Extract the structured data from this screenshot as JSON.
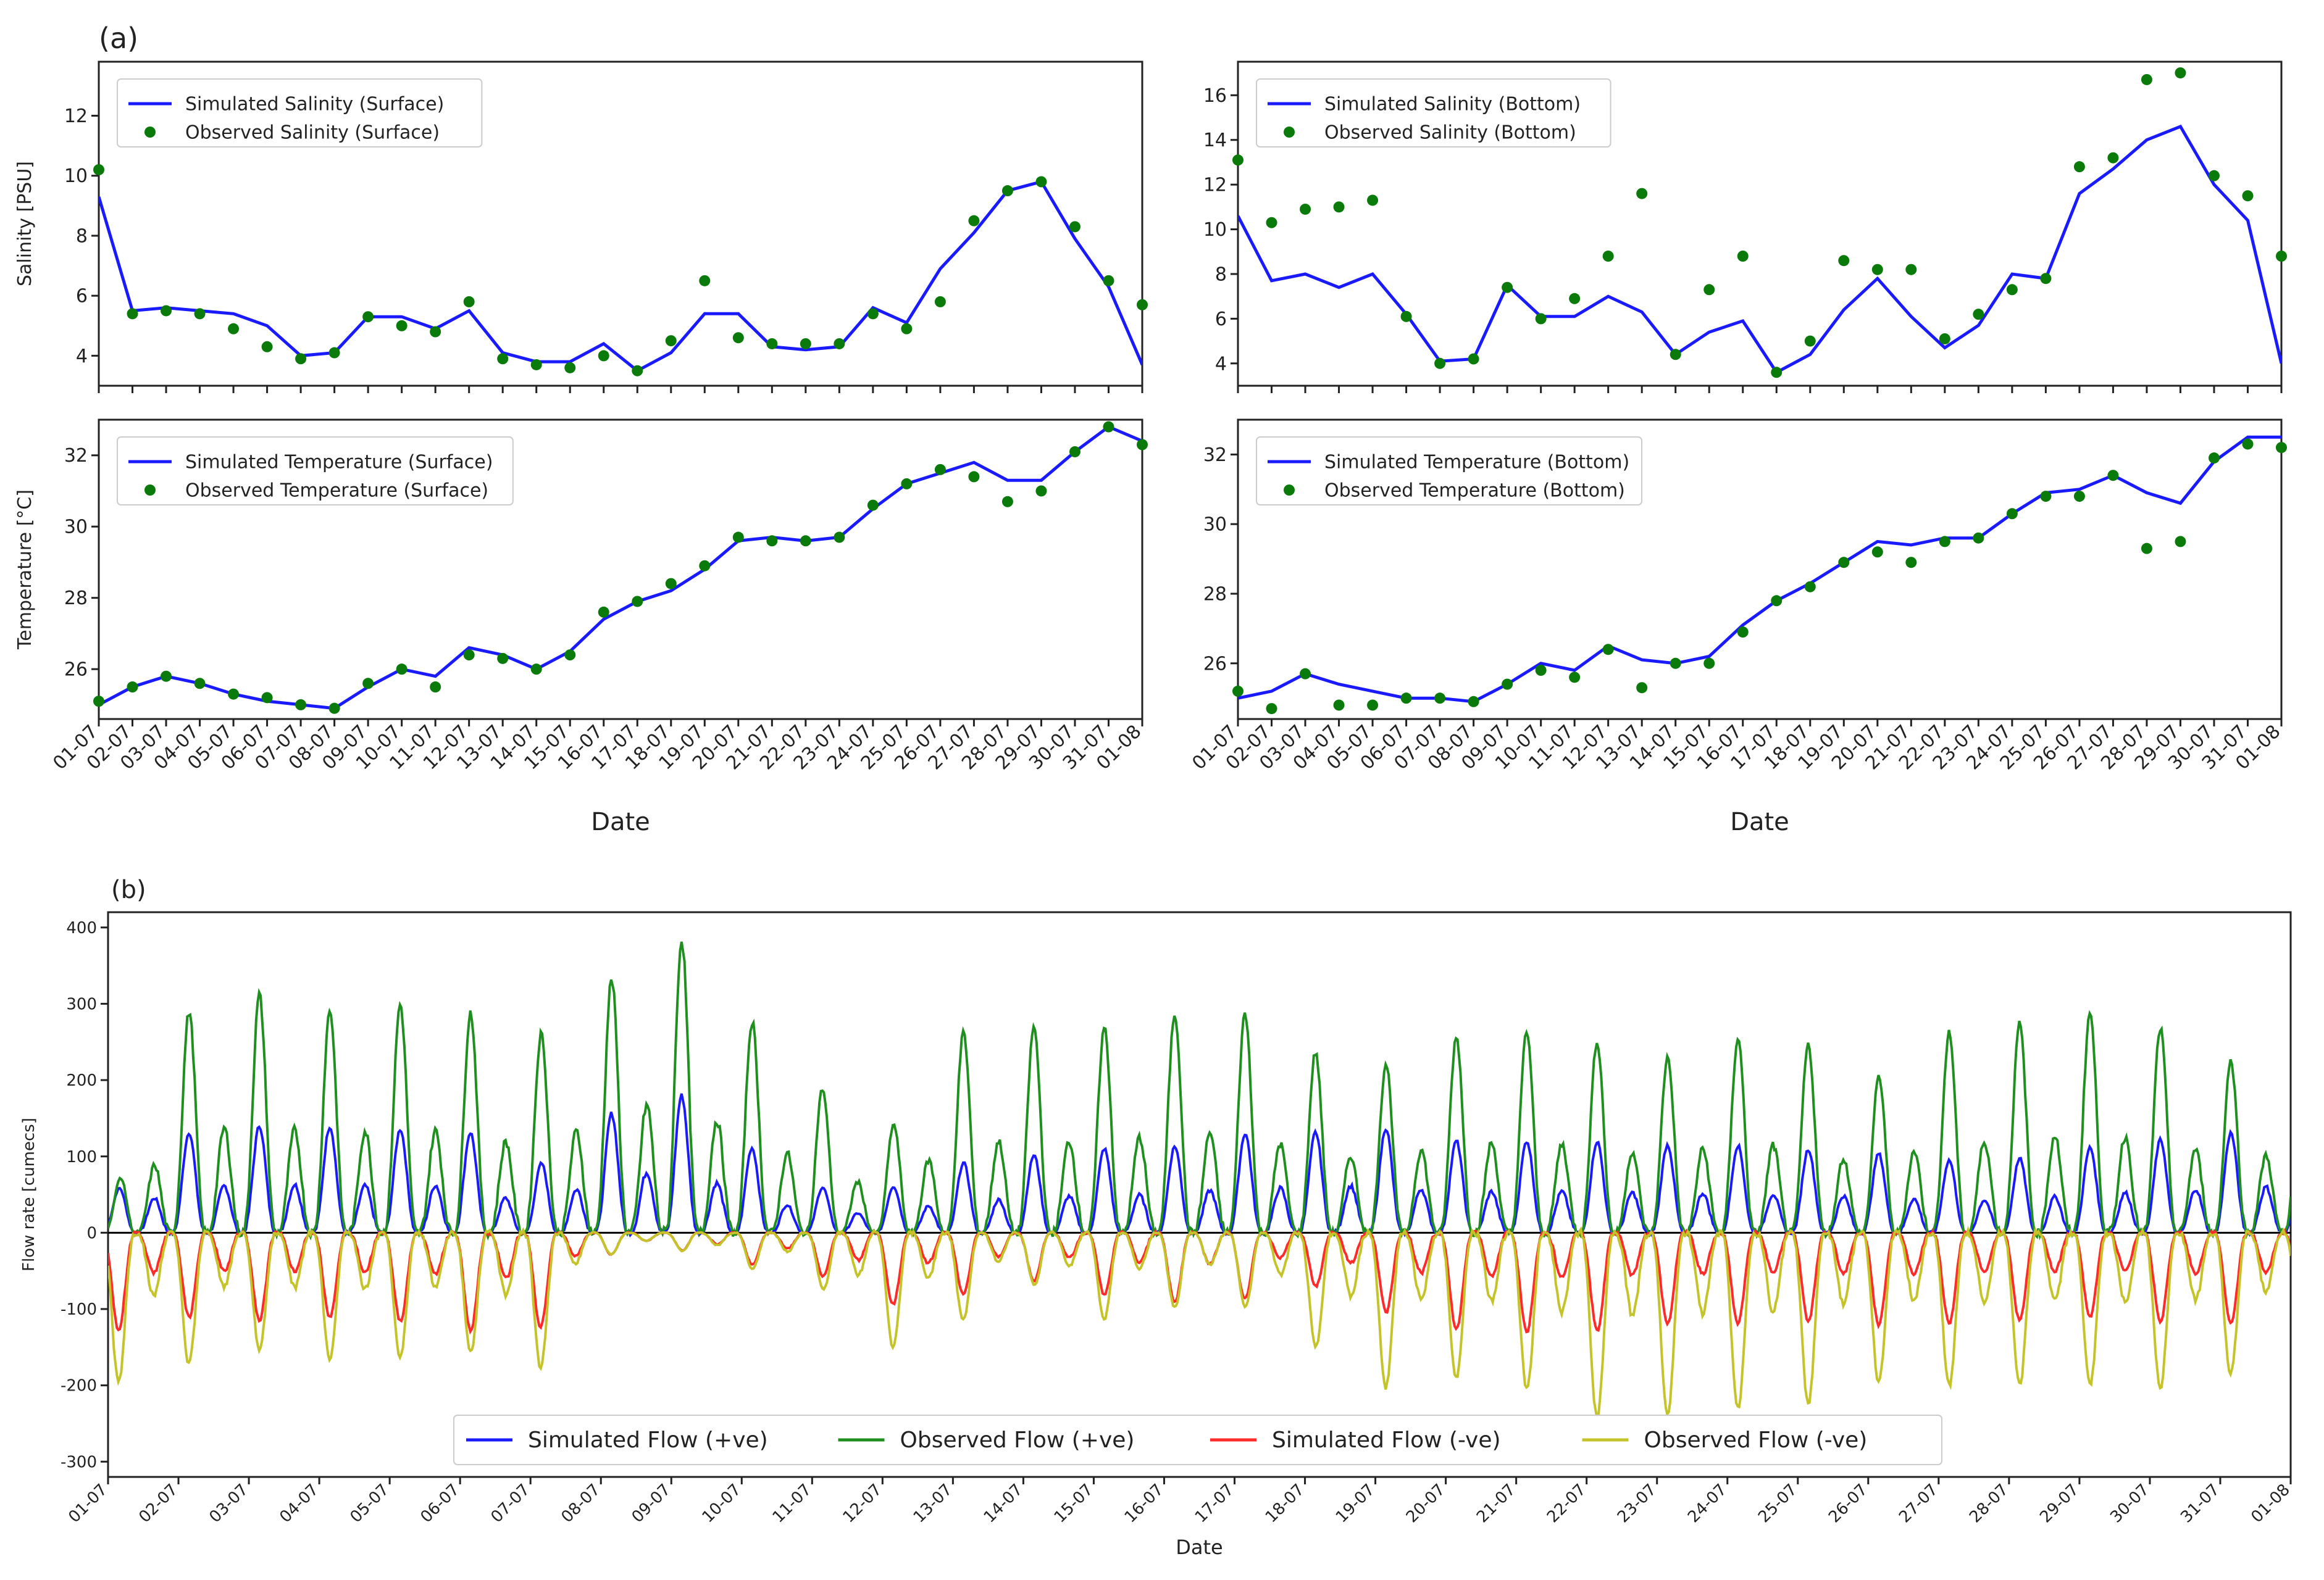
{
  "panel_labels": {
    "a": "(a)",
    "b": "(b)"
  },
  "dates": [
    "01-07",
    "02-07",
    "03-07",
    "04-07",
    "05-07",
    "06-07",
    "07-07",
    "08-07",
    "09-07",
    "10-07",
    "11-07",
    "12-07",
    "13-07",
    "14-07",
    "15-07",
    "16-07",
    "17-07",
    "18-07",
    "19-07",
    "20-07",
    "21-07",
    "22-07",
    "23-07",
    "24-07",
    "25-07",
    "26-07",
    "27-07",
    "28-07",
    "29-07",
    "30-07",
    "31-07",
    "01-08"
  ],
  "colors": {
    "simulated": "#1a1aff",
    "observed_points": "#0a7a0a",
    "obs_pos": "#1f8f1f",
    "sim_neg": "#ff2a2a",
    "obs_neg": "#c4c42a",
    "zero_line": "#000000"
  },
  "chart_data": [
    {
      "type": "line",
      "id": "sal_surface",
      "ylabel": "Salinity [PSU]",
      "xlabel": "",
      "ylim": [
        3,
        13.8
      ],
      "yticks": [
        4,
        6,
        8,
        10,
        12
      ],
      "legend": "top-left",
      "series": [
        {
          "name": "Simulated Salinity (Surface)",
          "kind": "line",
          "x": [
            0,
            1,
            2,
            3,
            4,
            5,
            6,
            7,
            8,
            9,
            10,
            11,
            12,
            13,
            14,
            15,
            16,
            17,
            18,
            19,
            20,
            21,
            22,
            23,
            24,
            25,
            26,
            27,
            28,
            29,
            30,
            31
          ],
          "values": [
            9.3,
            5.5,
            5.6,
            5.5,
            5.4,
            5.0,
            4.0,
            4.1,
            5.3,
            5.3,
            4.9,
            5.5,
            4.1,
            3.8,
            3.8,
            4.4,
            3.5,
            4.1,
            5.4,
            5.4,
            4.3,
            4.2,
            4.3,
            5.6,
            5.1,
            6.9,
            8.1,
            9.5,
            9.8,
            7.9,
            6.3,
            3.7
          ]
        },
        {
          "name": "Observed Salinity (Surface)",
          "kind": "scatter",
          "x": [
            0,
            1,
            2,
            3,
            4,
            5,
            6,
            7,
            8,
            9,
            10,
            11,
            12,
            13,
            14,
            15,
            16,
            17,
            18,
            19,
            20,
            21,
            22,
            23,
            24,
            25,
            26,
            27,
            28,
            29,
            30,
            31
          ],
          "values": [
            10.2,
            5.4,
            5.5,
            5.4,
            4.9,
            4.3,
            3.9,
            4.1,
            5.3,
            5.0,
            4.8,
            5.8,
            3.9,
            3.7,
            3.6,
            4.0,
            3.5,
            4.5,
            6.5,
            4.6,
            4.4,
            4.4,
            4.4,
            5.4,
            4.9,
            5.8,
            8.5,
            9.5,
            9.8,
            8.3,
            6.5,
            5.7
          ]
        }
      ]
    },
    {
      "type": "line",
      "id": "sal_bottom",
      "ylabel": "",
      "xlabel": "",
      "ylim": [
        3,
        17.5
      ],
      "yticks": [
        4,
        6,
        8,
        10,
        12,
        14,
        16
      ],
      "legend": "top-left",
      "series": [
        {
          "name": "Simulated Salinity (Bottom)",
          "kind": "line",
          "x": [
            0,
            1,
            2,
            3,
            4,
            5,
            6,
            7,
            8,
            9,
            10,
            11,
            12,
            13,
            14,
            15,
            16,
            17,
            18,
            19,
            20,
            21,
            22,
            23,
            24,
            25,
            26,
            27,
            28,
            29,
            30,
            31
          ],
          "values": [
            10.6,
            7.7,
            8.0,
            7.4,
            8.0,
            6.2,
            4.1,
            4.2,
            7.5,
            6.1,
            6.1,
            7.0,
            6.3,
            4.4,
            5.4,
            5.9,
            3.6,
            4.4,
            6.4,
            7.8,
            6.1,
            4.7,
            5.7,
            8.0,
            7.8,
            11.6,
            12.7,
            14.0,
            14.6,
            12.0,
            10.4,
            4.0
          ]
        },
        {
          "name": "Observed Salinity (Bottom)",
          "kind": "scatter",
          "x": [
            0,
            1,
            2,
            3,
            4,
            5,
            6,
            7,
            8,
            9,
            10,
            11,
            12,
            13,
            14,
            15,
            16,
            17,
            18,
            19,
            20,
            21,
            22,
            23,
            24,
            25,
            26,
            27,
            28,
            29,
            30,
            31
          ],
          "values": [
            13.1,
            10.3,
            10.9,
            11.0,
            11.3,
            6.1,
            4.0,
            4.2,
            7.4,
            6.0,
            6.9,
            8.8,
            11.6,
            4.4,
            7.3,
            8.8,
            3.6,
            5.0,
            8.6,
            8.2,
            8.2,
            5.1,
            6.2,
            7.3,
            7.8,
            12.8,
            13.2,
            16.7,
            17.0,
            12.4,
            11.5,
            8.8
          ]
        }
      ]
    },
    {
      "type": "line",
      "id": "temp_surface",
      "ylabel": "Temperature [°C]",
      "xlabel": "Date",
      "ylim": [
        24.6,
        33.0
      ],
      "yticks": [
        26,
        28,
        30,
        32
      ],
      "legend": "top-left",
      "series": [
        {
          "name": "Simulated Temperature (Surface)",
          "kind": "line",
          "x": [
            0,
            1,
            2,
            3,
            4,
            5,
            6,
            7,
            8,
            9,
            10,
            11,
            12,
            13,
            14,
            15,
            16,
            17,
            18,
            19,
            20,
            21,
            22,
            23,
            24,
            25,
            26,
            27,
            28,
            29,
            30,
            31
          ],
          "values": [
            25.0,
            25.5,
            25.8,
            25.6,
            25.3,
            25.1,
            25.0,
            24.9,
            25.5,
            26.0,
            25.8,
            26.6,
            26.4,
            26.0,
            26.5,
            27.4,
            27.9,
            28.2,
            28.8,
            29.6,
            29.7,
            29.6,
            29.7,
            30.5,
            31.2,
            31.5,
            31.8,
            31.3,
            31.3,
            32.1,
            32.8,
            32.4
          ]
        },
        {
          "name": "Observed Temperature (Surface)",
          "kind": "scatter",
          "x": [
            0,
            1,
            2,
            3,
            4,
            5,
            6,
            7,
            8,
            9,
            10,
            11,
            12,
            13,
            14,
            15,
            16,
            17,
            18,
            19,
            20,
            21,
            22,
            23,
            24,
            25,
            26,
            27,
            28,
            29,
            30,
            31
          ],
          "values": [
            25.1,
            25.5,
            25.8,
            25.6,
            25.3,
            25.2,
            25.0,
            24.9,
            25.6,
            26.0,
            25.5,
            26.4,
            26.3,
            26.0,
            26.4,
            27.6,
            27.9,
            28.4,
            28.9,
            29.7,
            29.6,
            29.6,
            29.7,
            30.6,
            31.2,
            31.6,
            31.4,
            30.7,
            31.0,
            32.1,
            32.8,
            32.3
          ]
        }
      ]
    },
    {
      "type": "line",
      "id": "temp_bottom",
      "ylabel": "",
      "xlabel": "Date",
      "ylim": [
        24.4,
        33.0
      ],
      "yticks": [
        26,
        28,
        30,
        32
      ],
      "legend": "top-left",
      "series": [
        {
          "name": "Simulated Temperature (Bottom)",
          "kind": "line",
          "x": [
            0,
            1,
            2,
            3,
            4,
            5,
            6,
            7,
            8,
            9,
            10,
            11,
            12,
            13,
            14,
            15,
            16,
            17,
            18,
            19,
            20,
            21,
            22,
            23,
            24,
            25,
            26,
            27,
            28,
            29,
            30,
            31
          ],
          "values": [
            25.0,
            25.2,
            25.7,
            25.4,
            25.2,
            25.0,
            25.0,
            24.9,
            25.4,
            26.0,
            25.8,
            26.5,
            26.1,
            26.0,
            26.2,
            27.1,
            27.8,
            28.3,
            28.9,
            29.5,
            29.4,
            29.6,
            29.6,
            30.3,
            30.9,
            31.0,
            31.4,
            30.9,
            30.6,
            31.8,
            32.5,
            32.5
          ]
        },
        {
          "name": "Observed Temperature (Bottom)",
          "kind": "scatter",
          "x": [
            0,
            1,
            2,
            3,
            4,
            5,
            6,
            7,
            8,
            9,
            10,
            11,
            12,
            13,
            14,
            15,
            16,
            17,
            18,
            19,
            20,
            21,
            22,
            23,
            24,
            25,
            26,
            27,
            28,
            29,
            30,
            31
          ],
          "values": [
            25.2,
            24.7,
            25.7,
            24.8,
            24.8,
            25.0,
            25.0,
            24.9,
            25.4,
            25.8,
            25.6,
            26.4,
            25.3,
            26.0,
            26.0,
            26.9,
            27.8,
            28.2,
            28.9,
            29.2,
            28.9,
            29.5,
            29.6,
            30.3,
            30.8,
            30.8,
            31.4,
            29.3,
            29.5,
            31.9,
            32.3,
            32.2
          ]
        }
      ]
    },
    {
      "type": "line",
      "id": "flow",
      "ylabel": "Flow rate [cumecs]",
      "xlabel": "Date",
      "ylim": [
        -320,
        420
      ],
      "yticks": [
        -300,
        -200,
        -100,
        0,
        100,
        200,
        300,
        400
      ],
      "legend": "bottom-center",
      "series": [
        {
          "name": "Simulated Flow (+ve)",
          "kind": "tidal",
          "x": [
            0,
            1,
            2,
            3,
            4,
            5,
            6,
            7,
            8,
            9,
            10,
            11,
            12,
            13,
            14,
            15,
            16,
            17,
            18,
            19,
            20,
            21,
            22,
            23,
            24,
            25,
            26,
            27,
            28,
            29,
            30,
            31
          ],
          "values": [
            45,
            130,
            140,
            140,
            135,
            140,
            80,
            150,
            190,
            120,
            60,
            55,
            90,
            100,
            110,
            110,
            130,
            130,
            140,
            120,
            120,
            120,
            115,
            115,
            110,
            105,
            95,
            95,
            110,
            120,
            130,
            135
          ]
        },
        {
          "name": "Observed Flow (+ve)",
          "kind": "tidal",
          "x": [
            0,
            1,
            2,
            3,
            4,
            5,
            6,
            7,
            8,
            9,
            10,
            11,
            12,
            13,
            14,
            15,
            16,
            17,
            18,
            19,
            20,
            21,
            22,
            23,
            24,
            25,
            26,
            27,
            28,
            29,
            30,
            31
          ],
          "values": [
            30,
            285,
            315,
            290,
            300,
            295,
            250,
            320,
            400,
            290,
            200,
            120,
            260,
            270,
            265,
            285,
            295,
            240,
            215,
            255,
            265,
            255,
            225,
            255,
            255,
            195,
            260,
            270,
            290,
            275,
            225,
            225
          ]
        },
        {
          "name": "Simulated Flow (-ve)",
          "kind": "tidal",
          "x": [
            0,
            1,
            2,
            3,
            4,
            5,
            6,
            7,
            8,
            9,
            10,
            11,
            12,
            13,
            14,
            15,
            16,
            17,
            18,
            19,
            20,
            21,
            22,
            23,
            24,
            25,
            26,
            27,
            28,
            29,
            30,
            31
          ],
          "values": [
            -130,
            -110,
            -115,
            -110,
            -115,
            -125,
            -140,
            -30,
            -20,
            -40,
            -50,
            -95,
            -85,
            -60,
            -80,
            -90,
            -90,
            -65,
            -100,
            -125,
            -130,
            -130,
            -120,
            -120,
            -115,
            -120,
            -120,
            -115,
            -110,
            -115,
            -120,
            -115
          ]
        },
        {
          "name": "Observed Flow (-ve)",
          "kind": "tidal",
          "x": [
            0,
            1,
            2,
            3,
            4,
            5,
            6,
            7,
            8,
            9,
            10,
            11,
            12,
            13,
            14,
            15,
            16,
            17,
            18,
            19,
            20,
            21,
            22,
            23,
            24,
            25,
            26,
            27,
            28,
            29,
            30,
            31
          ],
          "values": [
            -200,
            -175,
            -150,
            -165,
            -165,
            -150,
            -200,
            -30,
            -20,
            -45,
            -60,
            -155,
            -125,
            -60,
            -115,
            -100,
            -90,
            -140,
            -205,
            -190,
            -200,
            -245,
            -240,
            -230,
            -230,
            -195,
            -200,
            -200,
            -200,
            -205,
            -190,
            -160
          ]
        }
      ]
    }
  ]
}
